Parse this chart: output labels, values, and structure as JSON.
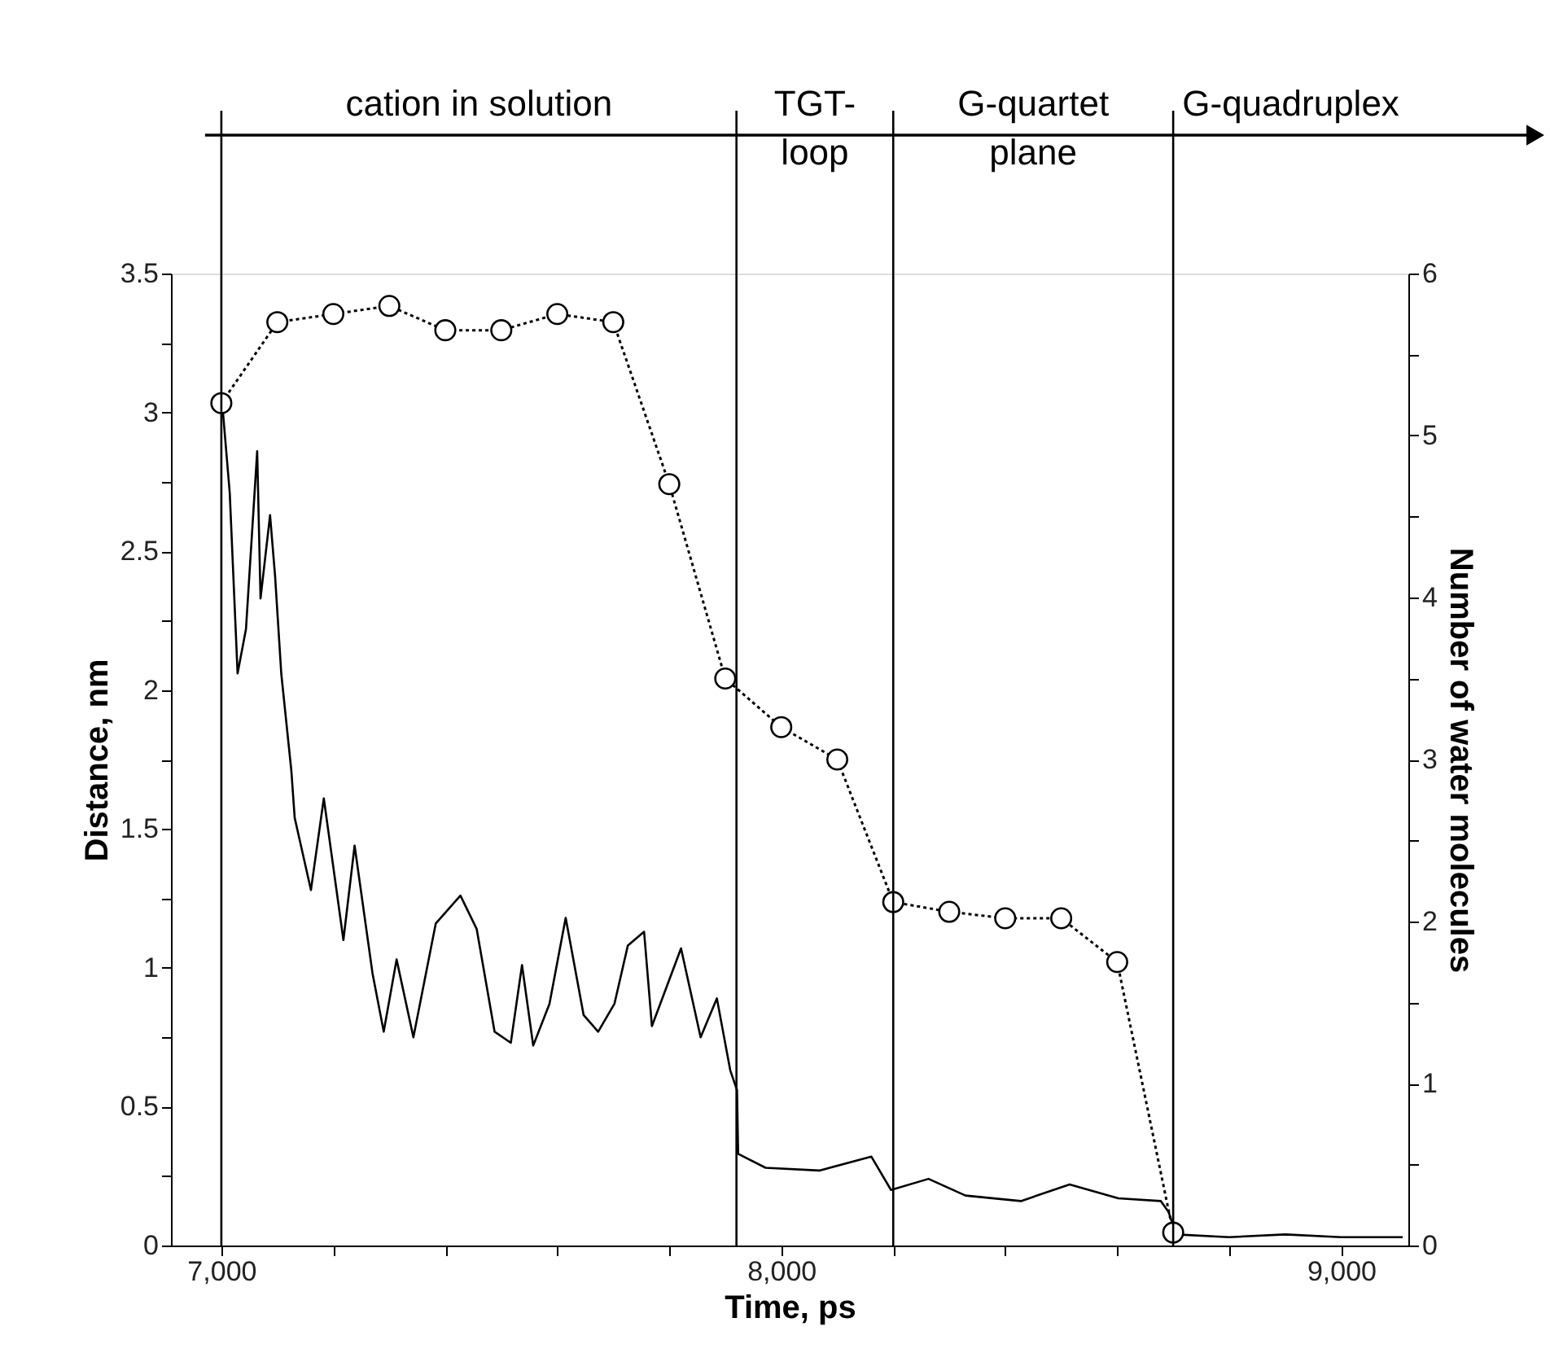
{
  "chart_data": {
    "type": "line",
    "xlabel": "Time, ps",
    "ylabel": "Distance, nm",
    "y2label": "Number of water molecules",
    "xlim": [
      6910,
      9120
    ],
    "xticks": [
      {
        "value": 7000,
        "label": "7,000"
      },
      {
        "value": 7200,
        "label": null
      },
      {
        "value": 7400,
        "label": null
      },
      {
        "value": 7600,
        "label": null
      },
      {
        "value": 7800,
        "label": null
      },
      {
        "value": 8000,
        "label": "8,000"
      },
      {
        "value": 8200,
        "label": null
      },
      {
        "value": 8400,
        "label": null
      },
      {
        "value": 8600,
        "label": null
      },
      {
        "value": 8800,
        "label": null
      },
      {
        "value": 9000,
        "label": "9,000"
      }
    ],
    "ylim": [
      0,
      3.5
    ],
    "yticks": [
      0,
      {
        "value": 0.25,
        "label": null
      },
      0.5,
      {
        "value": 0.75,
        "label": null
      },
      1,
      {
        "value": 1.25,
        "label": null
      },
      1.5,
      {
        "value": 1.75,
        "label": null
      },
      2,
      {
        "value": 2.25,
        "label": null
      },
      2.5,
      {
        "value": 2.75,
        "label": null
      },
      3,
      {
        "value": 3.25,
        "label": null
      },
      3.5
    ],
    "y2lim": [
      0,
      6
    ],
    "y2ticks": [
      0,
      {
        "value": 0.5,
        "label": null
      },
      1,
      {
        "value": 1.5,
        "label": null
      },
      2,
      {
        "value": 2.5,
        "label": null
      },
      3,
      {
        "value": 3.5,
        "label": null
      },
      4,
      {
        "value": 4.5,
        "label": null
      },
      5,
      {
        "value": 5.5,
        "label": null
      },
      6
    ],
    "grid": false,
    "series": [
      {
        "color": "#000000",
        "marker": "none",
        "line_style": "solid",
        "x": [
          7000,
          7015,
          7029,
          7044,
          7064,
          7070,
          7087,
          7096,
          7107,
          7125,
          7131,
          7160,
          7183,
          7218,
          7238,
          7270,
          7290,
          7313,
          7343,
          7383,
          7427,
          7456,
          7488,
          7517,
          7537,
          7557,
          7586,
          7615,
          7647,
          7673,
          7702,
          7726,
          7755,
          7769,
          7821,
          7856,
          7885,
          7909,
          7921,
          7923,
          7972,
          8068,
          8161,
          8196,
          8263,
          8329,
          8428,
          8515,
          8602,
          8678,
          8692,
          8705,
          8800,
          8900,
          9000,
          9110
        ],
        "values": [
          3.07,
          2.71,
          2.06,
          2.22,
          2.86,
          2.33,
          2.63,
          2.41,
          2.06,
          1.71,
          1.54,
          1.28,
          1.61,
          1.1,
          1.44,
          0.98,
          0.77,
          1.03,
          0.75,
          1.16,
          1.26,
          1.14,
          0.77,
          0.73,
          1.01,
          0.72,
          0.87,
          1.18,
          0.83,
          0.77,
          0.87,
          1.08,
          1.13,
          0.79,
          1.07,
          0.75,
          0.89,
          0.63,
          0.56,
          0.33,
          0.28,
          0.27,
          0.32,
          0.2,
          0.24,
          0.18,
          0.16,
          0.22,
          0.17,
          0.16,
          0.12,
          0.04,
          0.03,
          0.04,
          0.03,
          0.03
        ]
      },
      {
        "axis": "y2",
        "color": "#000000",
        "marker": "circle",
        "line_style": "dotted",
        "x": [
          7000,
          7100,
          7200,
          7300,
          7400,
          7500,
          7600,
          7700,
          7800,
          7900,
          8000,
          8100,
          8200,
          8300,
          8400,
          8500,
          8600,
          8700
        ],
        "values": [
          5.2,
          5.7,
          5.75,
          5.8,
          5.65,
          5.65,
          5.75,
          5.7,
          4.7,
          3.5,
          3.2,
          3.0,
          2.12,
          2.06,
          2.02,
          2.02,
          1.75,
          0.08
        ]
      }
    ],
    "ref_lines": [
      {
        "axis": "x",
        "value": 7000
      },
      {
        "axis": "x",
        "value": 7920
      },
      {
        "axis": "x",
        "value": 8200
      },
      {
        "axis": "x",
        "value": 8700
      }
    ],
    "annotations": [
      "cation in solution",
      "TGT-\nloop",
      "G-quartet\nplane",
      "G-quadruplex"
    ]
  }
}
